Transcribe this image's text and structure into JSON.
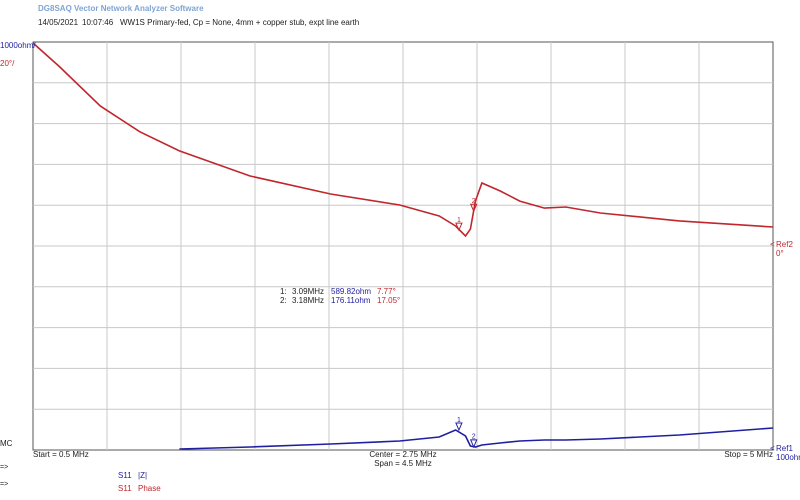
{
  "chart_data": {
    "type": "line",
    "software_title": "DG8SAQ Vector Network Analyzer Software",
    "date": "14/05/2021",
    "time": "10:07:46",
    "title": "WW1S Primary-fed, Cp = None, 4mm + copper stub, expt line earth",
    "x": [
      0.5,
      0.66,
      0.91,
      1.15,
      1.39,
      1.82,
      2.31,
      2.73,
      2.97,
      3.07,
      3.13,
      3.16,
      3.19,
      3.23,
      3.34,
      3.46,
      3.61,
      3.74,
      3.95,
      4.43,
      5.0
    ],
    "xlim": [
      0.5,
      5
    ],
    "ylim": [
      100,
      10100
    ],
    "y2lim": [
      -100,
      100
    ],
    "grid": true,
    "series": [
      {
        "name": "|Z|",
        "trace": "S11",
        "color": "#1f1fa0",
        "axis": "y",
        "values": [
          null,
          null,
          null,
          null,
          125,
          174,
          247,
          321,
          419,
          590,
          443,
          198,
          174,
          223,
          272,
          321,
          345,
          345,
          370,
          468,
          639
        ]
      },
      {
        "name": "Phase",
        "trace": "S11",
        "color": "#c0272d",
        "axis": "y2",
        "values": [
          99.5,
          88,
          68.6,
          56,
          46.6,
          34.3,
          25.5,
          20.1,
          14.7,
          9.8,
          4.9,
          8.3,
          22,
          30.9,
          27,
          22,
          18.6,
          19.1,
          16.2,
          12.3,
          9.3
        ]
      }
    ],
    "y_scale_label": "1000ohm/",
    "y_ref_label": "Ref1",
    "y_ref_value_label": "100ohm",
    "y2_scale_label": "20°/",
    "y2_ref_label": "Ref2",
    "y2_ref_value_label": "0°",
    "mode_label": "MC",
    "cursor_symbols": [
      "=>",
      "=>"
    ],
    "start_label": "Start = 0.5 MHz",
    "center_label": "Center = 2.75 MHz",
    "span_label": "Span = 4.5 MHz",
    "stop_label": "Stop = 5 MHz",
    "markers": [
      {
        "label": "1",
        "table_label": "1:",
        "x": 3.09,
        "x_label": "3.09MHz",
        "z": 589.82,
        "z_label": "589.82ohm",
        "phase": 7.77,
        "phase_label": "7.77°"
      },
      {
        "label": "2",
        "table_label": "2:",
        "x": 3.18,
        "x_label": "3.18MHz",
        "z": 176.11,
        "z_label": "176.11ohm",
        "phase": 17.05,
        "phase_label": "17.05°"
      }
    ]
  }
}
